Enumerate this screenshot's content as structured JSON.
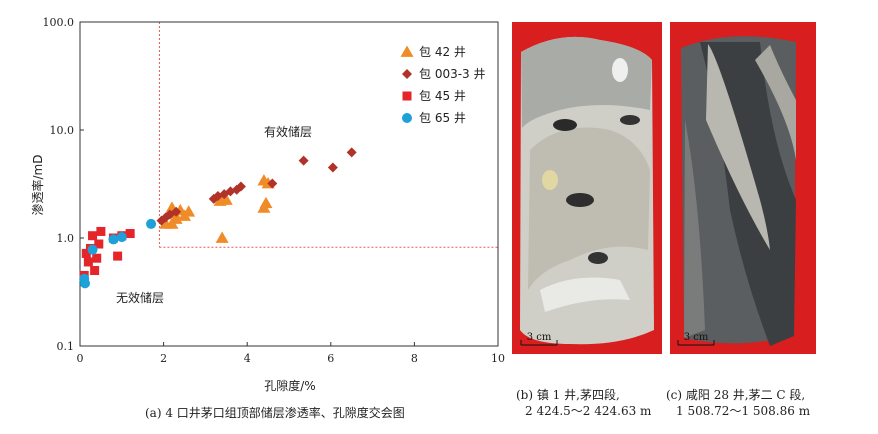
{
  "chart_data": {
    "type": "scatter",
    "xlabel": "孔隙度/%",
    "ylabel": "渗透率/mD",
    "xlim": [
      0,
      10
    ],
    "ylim": [
      0.1,
      100
    ],
    "yscale": "log",
    "x_ticks": [
      "0",
      "2",
      "4",
      "6",
      "8",
      "10"
    ],
    "y_ticks": [
      "0.1",
      "1.0",
      "10.0",
      "100.0"
    ],
    "legend_position": "top-right",
    "cutoff_porosity": 1.9,
    "cutoff_permeability": 0.82,
    "series": [
      {
        "name": "包 42 井",
        "marker": "triangle",
        "color": "#f08c28",
        "points": [
          [
            2.05,
            1.35
          ],
          [
            2.2,
            1.9
          ],
          [
            2.25,
            1.7
          ],
          [
            2.3,
            1.5
          ],
          [
            2.4,
            1.8
          ],
          [
            2.6,
            1.75
          ],
          [
            3.35,
            2.2
          ],
          [
            3.4,
            2.35
          ],
          [
            3.5,
            2.25
          ],
          [
            3.4,
            1.0
          ],
          [
            4.4,
            3.4
          ],
          [
            4.5,
            3.2
          ],
          [
            4.45,
            2.1
          ],
          [
            4.4,
            1.9
          ],
          [
            2.2,
            1.35
          ],
          [
            2.5,
            1.6
          ]
        ]
      },
      {
        "name": "包 003-3 井",
        "marker": "diamond",
        "color": "#b03228",
        "points": [
          [
            1.95,
            1.45
          ],
          [
            2.05,
            1.55
          ],
          [
            2.15,
            1.65
          ],
          [
            2.3,
            1.75
          ],
          [
            3.2,
            2.3
          ],
          [
            3.3,
            2.45
          ],
          [
            3.45,
            2.55
          ],
          [
            3.6,
            2.7
          ],
          [
            3.75,
            2.8
          ],
          [
            3.85,
            3.0
          ],
          [
            4.6,
            3.2
          ],
          [
            5.35,
            5.2
          ],
          [
            6.05,
            4.5
          ],
          [
            6.5,
            6.2
          ]
        ]
      },
      {
        "name": "包 45 井",
        "marker": "square",
        "color": "#e4252a",
        "points": [
          [
            0.1,
            0.45
          ],
          [
            0.15,
            0.72
          ],
          [
            0.2,
            0.6
          ],
          [
            0.25,
            0.8
          ],
          [
            0.3,
            1.05
          ],
          [
            0.35,
            0.5
          ],
          [
            0.4,
            0.65
          ],
          [
            0.45,
            0.88
          ],
          [
            0.5,
            1.15
          ],
          [
            0.8,
            1.0
          ],
          [
            0.9,
            0.68
          ],
          [
            1.0,
            1.05
          ],
          [
            1.2,
            1.1
          ]
        ]
      },
      {
        "name": "包 65 井",
        "marker": "circle",
        "color": "#1ea0d8",
        "points": [
          [
            0.1,
            0.42
          ],
          [
            0.12,
            0.38
          ],
          [
            0.3,
            0.78
          ],
          [
            0.8,
            0.97
          ],
          [
            1.0,
            1.02
          ],
          [
            1.7,
            1.35
          ]
        ]
      }
    ],
    "annotations": [
      "有效储层",
      "无效储层"
    ]
  },
  "captions": {
    "a": "(a) 4 口井茅口组顶部储层渗透率、孔隙度交会图",
    "b_line1": "(b) 镇 1 井,茅四段,",
    "b_line2": "2 424.5～2 424.63 m",
    "c_line1": "(c) 咸阳 28 井,茅二 C 段,",
    "c_line2": "1 508.72～1 508.86 m"
  },
  "photos": {
    "scale_label_b": "3 cm",
    "scale_label_c": "3 cm",
    "background_color": "#d81e1e"
  }
}
